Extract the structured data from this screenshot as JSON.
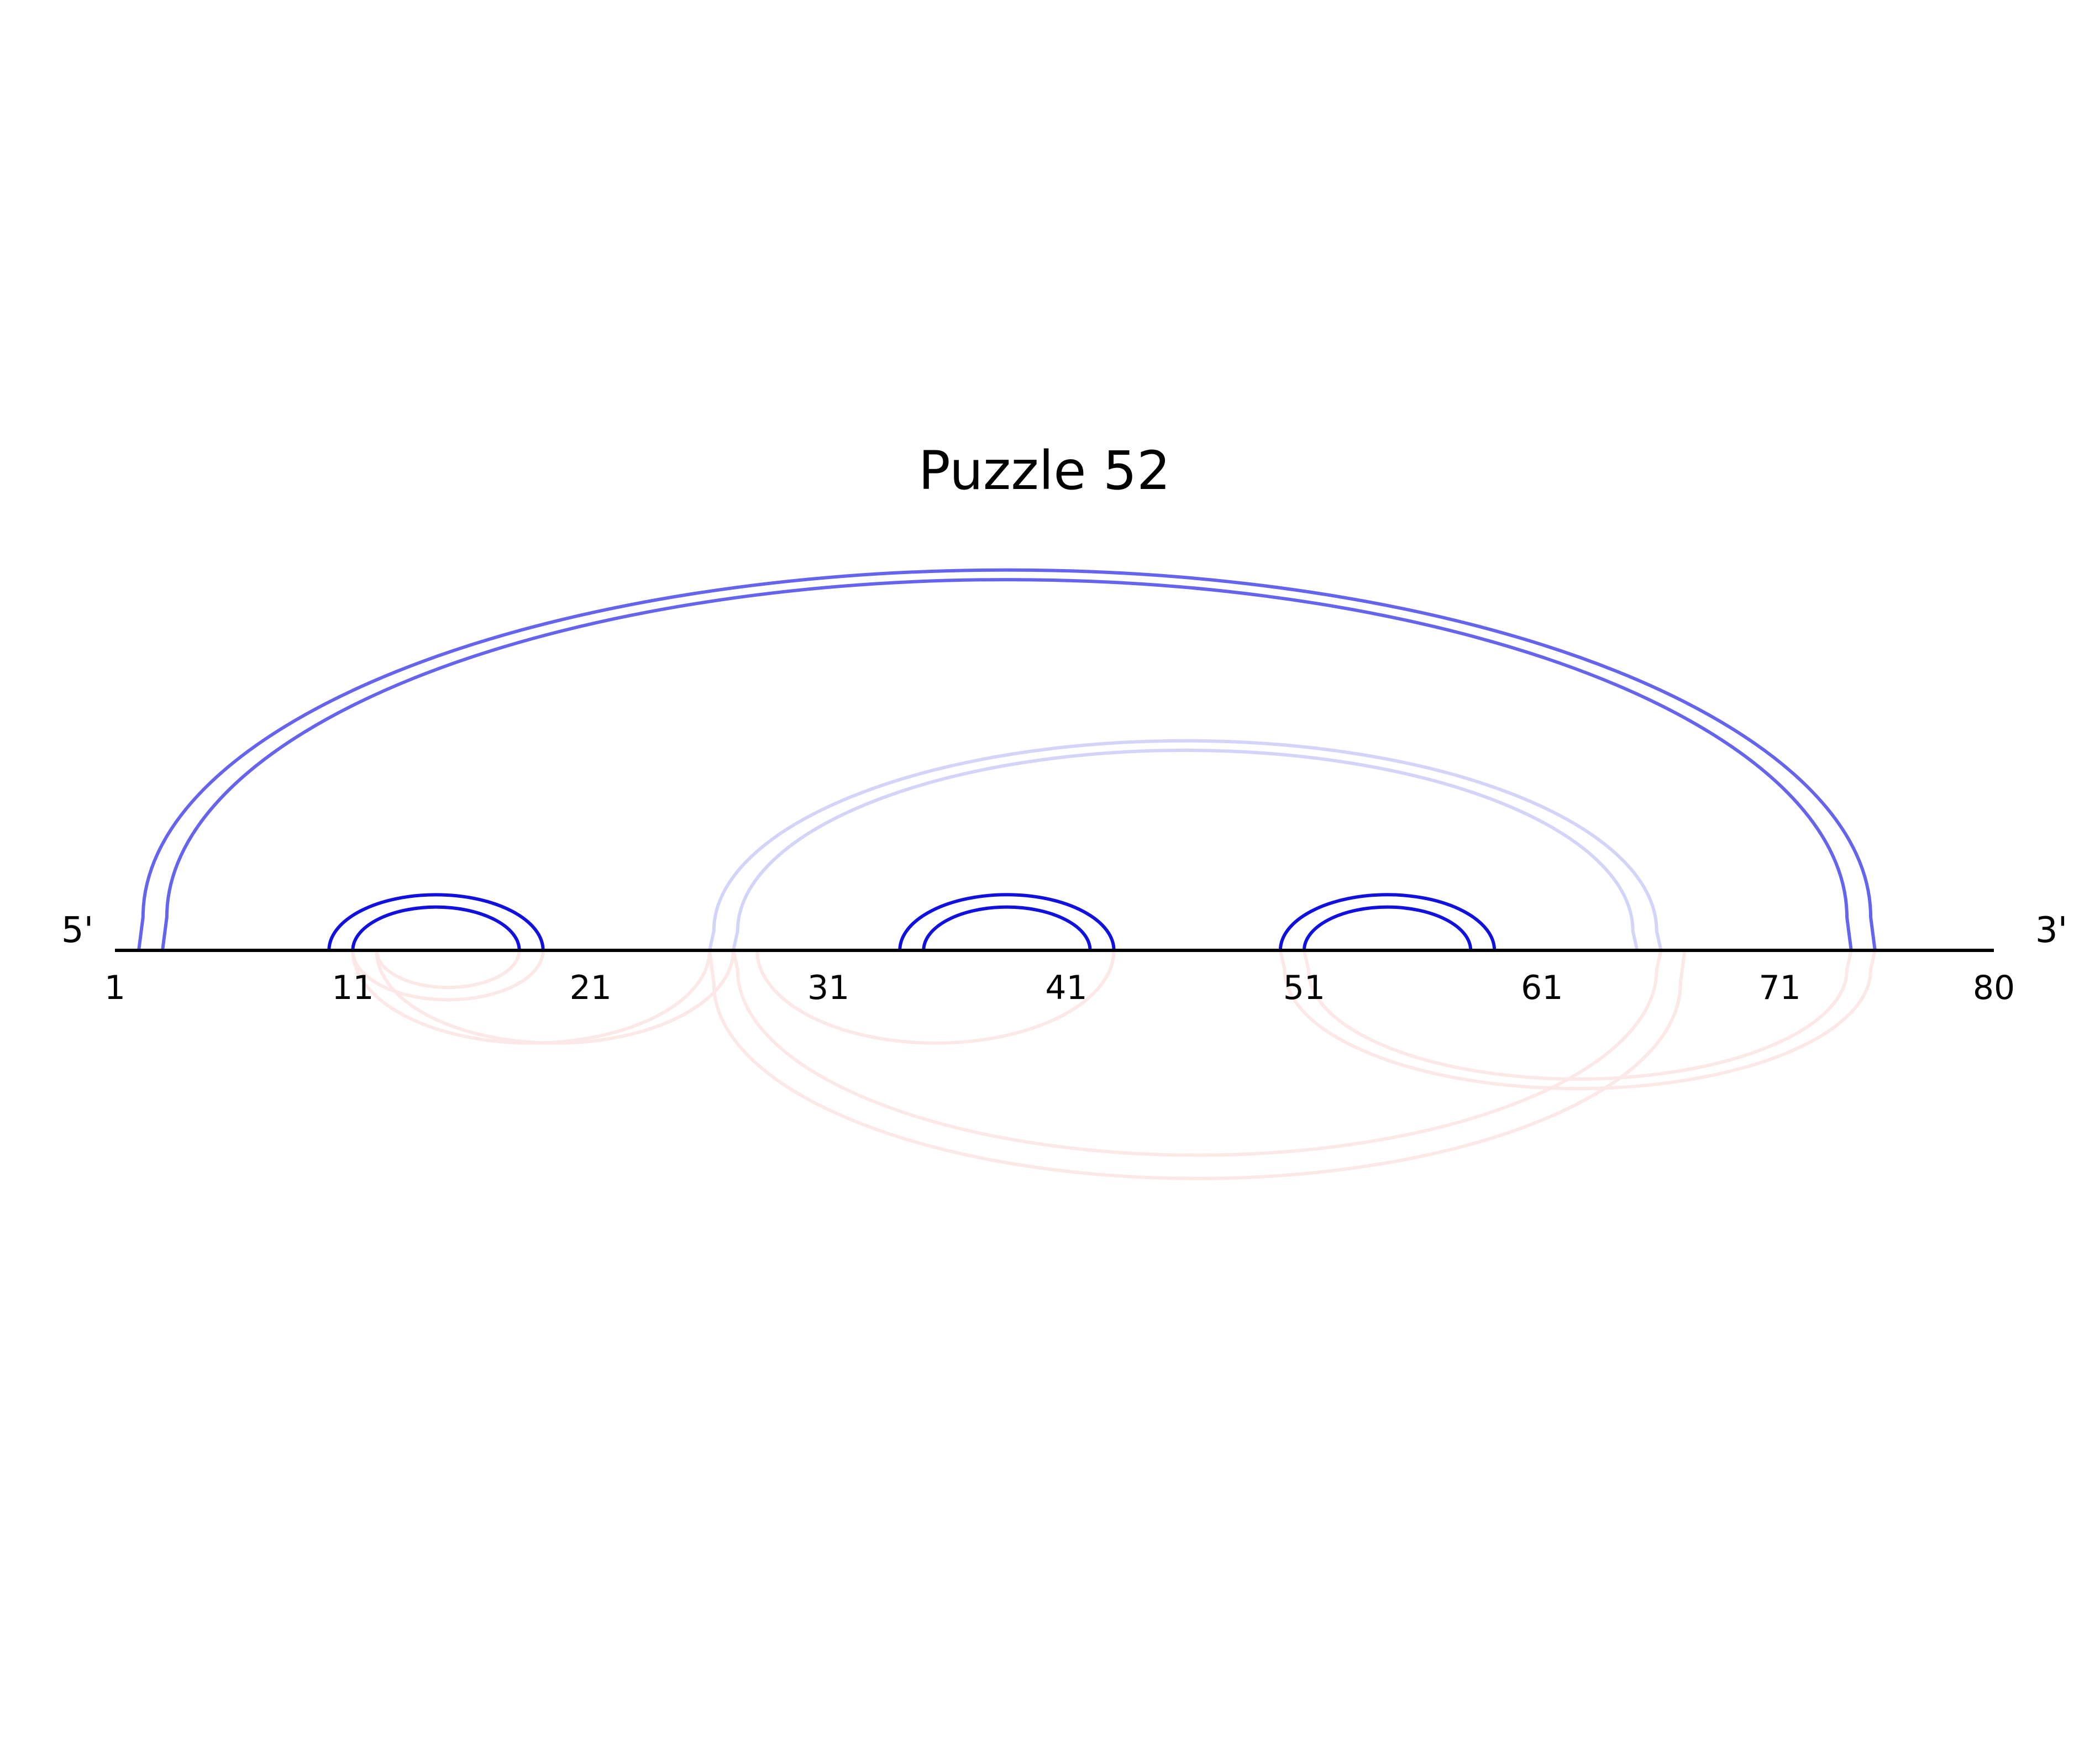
{
  "title": "Puzzle 52",
  "sequence": {
    "length": 80,
    "five_prime_label": "5'",
    "three_prime_label": "3'",
    "tick_labels": [
      "1",
      "11",
      "21",
      "31",
      "41",
      "51",
      "61",
      "71",
      "80"
    ],
    "tick_positions": [
      1,
      11,
      21,
      31,
      41,
      51,
      61,
      71,
      80
    ]
  },
  "colors": {
    "backbone": "#000000",
    "strong_pair": "#1010e0",
    "medium_pair": "#6464ee",
    "faint_pair": "#d4d4fa",
    "faint_lower": "#fde8e8"
  },
  "arcs_above": [
    {
      "name": "arc-2-75",
      "i": 2,
      "j": 75,
      "color": "medium_pair"
    },
    {
      "name": "arc-3-74",
      "i": 3,
      "j": 74,
      "color": "medium_pair"
    },
    {
      "name": "arc-10-19",
      "i": 10,
      "j": 19,
      "color": "strong_pair"
    },
    {
      "name": "arc-11-18",
      "i": 11,
      "j": 18,
      "color": "strong_pair"
    },
    {
      "name": "arc-26-66",
      "i": 26,
      "j": 66,
      "color": "faint_pair"
    },
    {
      "name": "arc-27-65",
      "i": 27,
      "j": 65,
      "color": "faint_pair"
    },
    {
      "name": "arc-34-43",
      "i": 34,
      "j": 43,
      "color": "strong_pair"
    },
    {
      "name": "arc-35-42",
      "i": 35,
      "j": 42,
      "color": "strong_pair"
    },
    {
      "name": "arc-50-59",
      "i": 50,
      "j": 59,
      "color": "strong_pair"
    },
    {
      "name": "arc-51-58",
      "i": 51,
      "j": 58,
      "color": "strong_pair"
    }
  ],
  "arcs_below": [
    {
      "name": "arc-below-12-18",
      "i": 12,
      "j": 18,
      "color": "faint_lower"
    },
    {
      "name": "arc-below-11-19",
      "i": 11,
      "j": 19,
      "color": "faint_lower"
    },
    {
      "name": "arc-below-11-26",
      "i": 11,
      "j": 26,
      "color": "faint_lower"
    },
    {
      "name": "arc-below-12-27",
      "i": 12,
      "j": 27,
      "color": "faint_lower"
    },
    {
      "name": "arc-below-26-67",
      "i": 26,
      "j": 67,
      "color": "faint_lower"
    },
    {
      "name": "arc-below-27-66",
      "i": 27,
      "j": 66,
      "color": "faint_lower"
    },
    {
      "name": "arc-below-28-43",
      "i": 28,
      "j": 43,
      "color": "faint_lower"
    },
    {
      "name": "arc-below-50-75",
      "i": 50,
      "j": 75,
      "color": "faint_lower"
    },
    {
      "name": "arc-below-51-74",
      "i": 51,
      "j": 74,
      "color": "faint_lower"
    }
  ]
}
